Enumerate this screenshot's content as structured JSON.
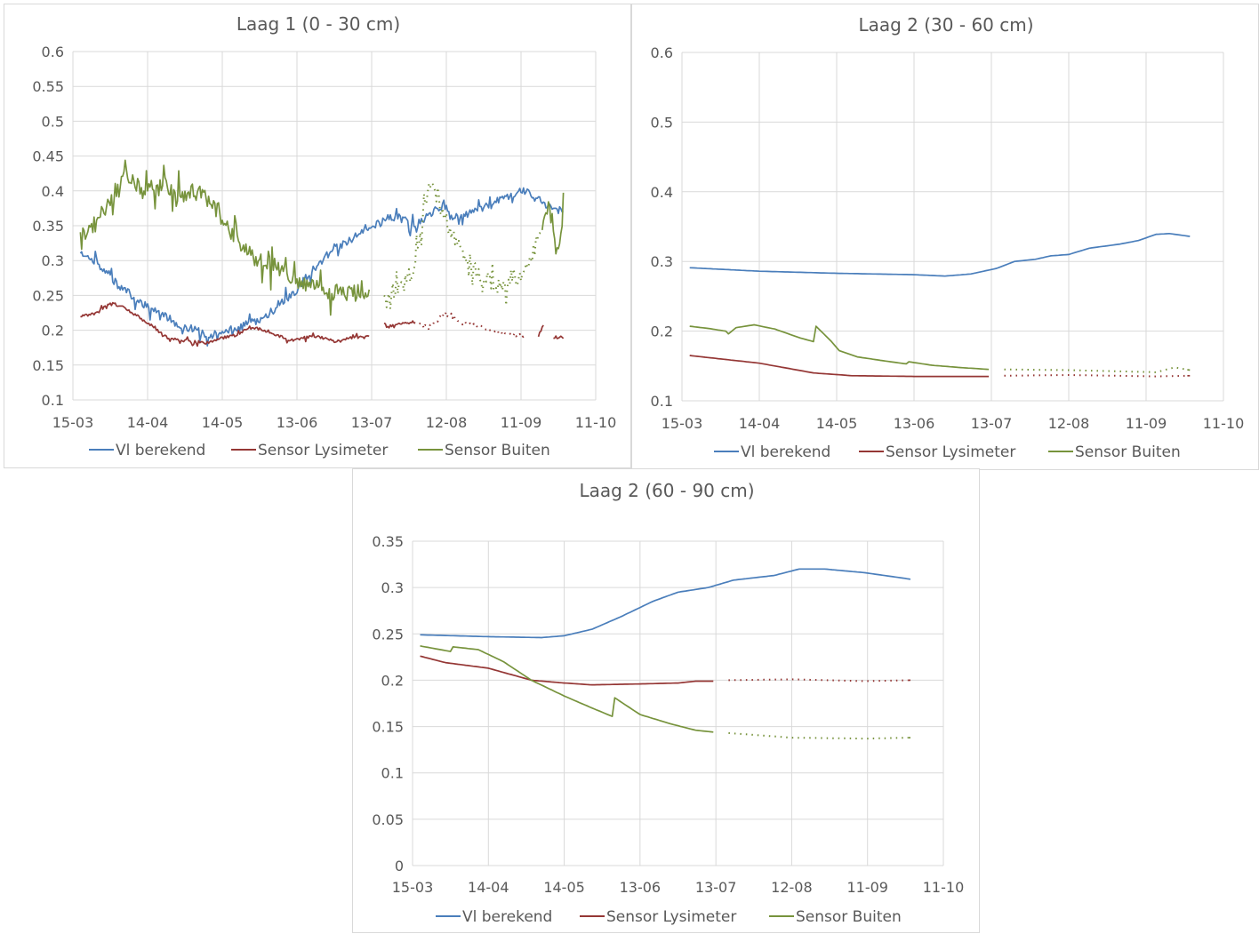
{
  "colors": {
    "vl": "#4a7ebb",
    "lysimeter": "#953735",
    "buiten": "#77933c"
  },
  "chart_data": [
    {
      "type": "line",
      "title": "Laag 1 (0 - 30 cm)",
      "x_tick_labels": [
        "15-03",
        "14-04",
        "14-05",
        "13-06",
        "13-07",
        "12-08",
        "11-09",
        "11-10"
      ],
      "y_tick_labels": [
        "0.1",
        "0.15",
        "0.2",
        "0.25",
        "0.3",
        "0.35",
        "0.4",
        "0.45",
        "0.5",
        "0.55",
        "0.6"
      ],
      "xlim": [
        "2015-03-15",
        "2015-10-11"
      ],
      "ylim": [
        0.1,
        0.6
      ],
      "grid": true,
      "legend": "bottom",
      "series": [
        {
          "name": "Vl berekend",
          "key": "vl",
          "style": "solid",
          "noise": 0.006,
          "points": [
            [
              "2015-03-18",
              0.31
            ],
            [
              "2015-03-25",
              0.297
            ],
            [
              "2015-04-01",
              0.268
            ],
            [
              "2015-04-10",
              0.243
            ],
            [
              "2015-04-20",
              0.222
            ],
            [
              "2015-04-28",
              0.206
            ],
            [
              "2015-05-05",
              0.198
            ],
            [
              "2015-05-10",
              0.193
            ],
            [
              "2015-05-20",
              0.203
            ],
            [
              "2015-05-28",
              0.213
            ],
            [
              "2015-06-05",
              0.232
            ],
            [
              "2015-06-12",
              0.255
            ],
            [
              "2015-06-20",
              0.29
            ],
            [
              "2015-06-28",
              0.318
            ],
            [
              "2015-07-05",
              0.33
            ],
            [
              "2015-07-12",
              0.345
            ],
            [
              "2015-07-22",
              0.365
            ],
            [
              "2015-07-30",
              0.35
            ],
            [
              "2015-08-05",
              0.365
            ],
            [
              "2015-08-10",
              0.378
            ],
            [
              "2015-08-15",
              0.362
            ],
            [
              "2015-08-25",
              0.372
            ],
            [
              "2015-09-05",
              0.39
            ],
            [
              "2015-09-12",
              0.4
            ],
            [
              "2015-09-20",
              0.382
            ],
            [
              "2015-09-28",
              0.37
            ]
          ]
        },
        {
          "name": "Sensor Lysimeter",
          "key": "lysimeter",
          "style": "mixed",
          "noise": 0.002,
          "points": [
            [
              "2015-03-18",
              0.221
            ],
            [
              "2015-03-25",
              0.225
            ],
            [
              "2015-03-30",
              0.24
            ],
            [
              "2015-04-05",
              0.232
            ],
            [
              "2015-04-15",
              0.208
            ],
            [
              "2015-04-22",
              0.189
            ],
            [
              "2015-05-01",
              0.184
            ],
            [
              "2015-05-08",
              0.182
            ],
            [
              "2015-05-15",
              0.19
            ],
            [
              "2015-05-20",
              0.193
            ],
            [
              "2015-05-25",
              0.205
            ],
            [
              "2015-06-02",
              0.198
            ],
            [
              "2015-06-10",
              0.185
            ],
            [
              "2015-06-20",
              0.192
            ],
            [
              "2015-06-28",
              0.184
            ],
            [
              "2015-07-06",
              0.19
            ],
            [
              "2015-07-12",
              0.19
            ],
            [
              "2015-07-18",
              0.205
            ],
            [
              "2015-07-30",
              0.212
            ],
            [
              "2015-08-05",
              0.205
            ],
            [
              "2015-08-12",
              0.222
            ],
            [
              "2015-08-20",
              0.21
            ],
            [
              "2015-09-05",
              0.195
            ],
            [
              "2015-09-12",
              0.19
            ],
            [
              "2015-09-18",
              0.192
            ],
            [
              "2015-09-20",
              0.208
            ],
            [
              "2015-09-24",
              0.19
            ],
            [
              "2015-09-28",
              0.19
            ]
          ],
          "gaps": [
            [
              "2015-07-12",
              "2015-07-18"
            ],
            [
              "2015-09-12",
              "2015-09-18"
            ],
            [
              "2015-09-20",
              "2015-09-24"
            ]
          ],
          "dotted": [
            [
              "2015-07-30",
              "2015-09-12"
            ]
          ]
        },
        {
          "name": "Sensor Buiten",
          "key": "buiten",
          "style": "mixed",
          "noise": 0.012,
          "points": [
            [
              "2015-03-18",
              0.335
            ],
            [
              "2015-03-25",
              0.355
            ],
            [
              "2015-03-30",
              0.39
            ],
            [
              "2015-04-05",
              0.42
            ],
            [
              "2015-04-12",
              0.4
            ],
            [
              "2015-04-20",
              0.41
            ],
            [
              "2015-04-28",
              0.39
            ],
            [
              "2015-05-05",
              0.4
            ],
            [
              "2015-05-12",
              0.37
            ],
            [
              "2015-05-20",
              0.33
            ],
            [
              "2015-05-28",
              0.3
            ],
            [
              "2015-06-05",
              0.29
            ],
            [
              "2015-06-12",
              0.27
            ],
            [
              "2015-06-20",
              0.26
            ],
            [
              "2015-06-28",
              0.255
            ],
            [
              "2015-07-06",
              0.253
            ],
            [
              "2015-07-12",
              0.256
            ],
            [
              "2015-07-18",
              0.255
            ],
            [
              "2015-07-25",
              0.26
            ],
            [
              "2015-07-30",
              0.29
            ],
            [
              "2015-08-05",
              0.41
            ],
            [
              "2015-08-10",
              0.37
            ],
            [
              "2015-08-20",
              0.3
            ],
            [
              "2015-08-28",
              0.27
            ],
            [
              "2015-09-05",
              0.262
            ],
            [
              "2015-09-10",
              0.27
            ],
            [
              "2015-09-15",
              0.3
            ],
            [
              "2015-09-20",
              0.36
            ],
            [
              "2015-09-23",
              0.39
            ],
            [
              "2015-09-25",
              0.3
            ],
            [
              "2015-09-28",
              0.37
            ]
          ],
          "gaps": [
            [
              "2015-07-12",
              "2015-07-18"
            ]
          ],
          "dotted": [
            [
              "2015-07-18",
              "2015-09-20"
            ]
          ]
        }
      ]
    },
    {
      "type": "line",
      "title": "Laag 2 (30 - 60 cm)",
      "x_tick_labels": [
        "15-03",
        "14-04",
        "14-05",
        "13-06",
        "13-07",
        "12-08",
        "11-09",
        "11-10"
      ],
      "y_tick_labels": [
        "0.1",
        "0.2",
        "0.3",
        "0.4",
        "0.5",
        "0.6"
      ],
      "xlim": [
        "2015-03-15",
        "2015-10-11"
      ],
      "ylim": [
        0.1,
        0.6
      ],
      "grid": true,
      "legend": "bottom",
      "series": [
        {
          "name": "Vl berekend",
          "key": "vl",
          "style": "solid",
          "noise": 0,
          "points": [
            [
              "2015-03-18",
              0.291
            ],
            [
              "2015-04-14",
              0.286
            ],
            [
              "2015-05-14",
              0.283
            ],
            [
              "2015-06-13",
              0.281
            ],
            [
              "2015-06-25",
              0.279
            ],
            [
              "2015-07-05",
              0.282
            ],
            [
              "2015-07-15",
              0.29
            ],
            [
              "2015-07-22",
              0.3
            ],
            [
              "2015-07-30",
              0.303
            ],
            [
              "2015-08-05",
              0.308
            ],
            [
              "2015-08-12",
              0.31
            ],
            [
              "2015-08-20",
              0.319
            ],
            [
              "2015-09-01",
              0.325
            ],
            [
              "2015-09-08",
              0.33
            ],
            [
              "2015-09-15",
              0.339
            ],
            [
              "2015-09-20",
              0.34
            ],
            [
              "2015-09-28",
              0.336
            ]
          ]
        },
        {
          "name": "Sensor Lysimeter",
          "key": "lysimeter",
          "style": "mixed",
          "noise": 0,
          "points": [
            [
              "2015-03-18",
              0.165
            ],
            [
              "2015-04-14",
              0.154
            ],
            [
              "2015-05-05",
              0.14
            ],
            [
              "2015-05-20",
              0.136
            ],
            [
              "2015-06-13",
              0.135
            ],
            [
              "2015-07-12",
              0.135
            ],
            [
              "2015-07-18",
              0.136
            ],
            [
              "2015-08-12",
              0.137
            ],
            [
              "2015-09-15",
              0.135
            ],
            [
              "2015-09-28",
              0.136
            ]
          ],
          "gaps": [
            [
              "2015-07-12",
              "2015-07-18"
            ]
          ],
          "dotted": [
            [
              "2015-07-18",
              "2015-09-28"
            ]
          ]
        },
        {
          "name": "Sensor Buiten",
          "key": "buiten",
          "style": "mixed",
          "noise": 0,
          "points": [
            [
              "2015-03-18",
              0.207
            ],
            [
              "2015-03-25",
              0.204
            ],
            [
              "2015-04-01",
              0.2
            ],
            [
              "2015-04-02",
              0.196
            ],
            [
              "2015-04-05",
              0.205
            ],
            [
              "2015-04-12",
              0.209
            ],
            [
              "2015-04-20",
              0.203
            ],
            [
              "2015-04-30",
              0.19
            ],
            [
              "2015-05-05",
              0.185
            ],
            [
              "2015-05-06",
              0.207
            ],
            [
              "2015-05-12",
              0.185
            ],
            [
              "2015-05-15",
              0.172
            ],
            [
              "2015-05-22",
              0.163
            ],
            [
              "2015-06-02",
              0.157
            ],
            [
              "2015-06-10",
              0.153
            ],
            [
              "2015-06-11",
              0.156
            ],
            [
              "2015-06-20",
              0.151
            ],
            [
              "2015-06-30",
              0.148
            ],
            [
              "2015-07-12",
              0.145
            ],
            [
              "2015-07-18",
              0.145
            ],
            [
              "2015-08-12",
              0.144
            ],
            [
              "2015-09-15",
              0.141
            ],
            [
              "2015-09-22",
              0.148
            ],
            [
              "2015-09-28",
              0.144
            ]
          ],
          "gaps": [
            [
              "2015-07-12",
              "2015-07-18"
            ]
          ],
          "dotted": [
            [
              "2015-07-18",
              "2015-09-28"
            ]
          ]
        }
      ]
    },
    {
      "type": "line",
      "title": "Laag 2 (60 - 90 cm)",
      "x_tick_labels": [
        "15-03",
        "14-04",
        "14-05",
        "13-06",
        "13-07",
        "12-08",
        "11-09",
        "11-10"
      ],
      "y_tick_labels": [
        "0",
        "0.05",
        "0.1",
        "0.15",
        "0.2",
        "0.25",
        "0.3",
        "0.35"
      ],
      "xlim": [
        "2015-03-15",
        "2015-10-11"
      ],
      "ylim": [
        0,
        0.35
      ],
      "grid": true,
      "legend": "bottom",
      "series": [
        {
          "name": "Vl berekend",
          "key": "vl",
          "style": "solid",
          "noise": 0,
          "points": [
            [
              "2015-03-18",
              0.249
            ],
            [
              "2015-04-14",
              0.247
            ],
            [
              "2015-05-05",
              0.246
            ],
            [
              "2015-05-14",
              0.248
            ],
            [
              "2015-05-25",
              0.255
            ],
            [
              "2015-06-05",
              0.268
            ],
            [
              "2015-06-18",
              0.285
            ],
            [
              "2015-06-28",
              0.295
            ],
            [
              "2015-07-10",
              0.3
            ],
            [
              "2015-07-20",
              0.308
            ],
            [
              "2015-08-05",
              0.313
            ],
            [
              "2015-08-15",
              0.32
            ],
            [
              "2015-08-25",
              0.32
            ],
            [
              "2015-09-10",
              0.316
            ],
            [
              "2015-09-28",
              0.309
            ]
          ]
        },
        {
          "name": "Sensor Lysimeter",
          "key": "lysimeter",
          "style": "mixed",
          "noise": 0,
          "points": [
            [
              "2015-03-18",
              0.226
            ],
            [
              "2015-03-28",
              0.219
            ],
            [
              "2015-04-14",
              0.213
            ],
            [
              "2015-05-01",
              0.2
            ],
            [
              "2015-05-14",
              0.197
            ],
            [
              "2015-05-25",
              0.195
            ],
            [
              "2015-06-13",
              0.196
            ],
            [
              "2015-06-28",
              0.197
            ],
            [
              "2015-07-05",
              0.199
            ],
            [
              "2015-07-12",
              0.199
            ],
            [
              "2015-07-18",
              0.2
            ],
            [
              "2015-08-12",
              0.201
            ],
            [
              "2015-09-10",
              0.199
            ],
            [
              "2015-09-28",
              0.2
            ]
          ],
          "gaps": [
            [
              "2015-07-12",
              "2015-07-18"
            ]
          ],
          "dotted": [
            [
              "2015-07-18",
              "2015-09-28"
            ]
          ]
        },
        {
          "name": "Sensor Buiten",
          "key": "buiten",
          "style": "mixed",
          "noise": 0,
          "points": [
            [
              "2015-03-18",
              0.237
            ],
            [
              "2015-03-30",
              0.231
            ],
            [
              "2015-03-31",
              0.236
            ],
            [
              "2015-04-10",
              0.233
            ],
            [
              "2015-04-20",
              0.22
            ],
            [
              "2015-05-01",
              0.2
            ],
            [
              "2015-05-14",
              0.183
            ],
            [
              "2015-05-25",
              0.17
            ],
            [
              "2015-06-02",
              0.161
            ],
            [
              "2015-06-03",
              0.181
            ],
            [
              "2015-06-13",
              0.163
            ],
            [
              "2015-06-25",
              0.153
            ],
            [
              "2015-07-05",
              0.146
            ],
            [
              "2015-07-12",
              0.144
            ],
            [
              "2015-07-18",
              0.143
            ],
            [
              "2015-08-12",
              0.138
            ],
            [
              "2015-09-10",
              0.137
            ],
            [
              "2015-09-28",
              0.138
            ]
          ],
          "gaps": [
            [
              "2015-07-12",
              "2015-07-18"
            ]
          ],
          "dotted": [
            [
              "2015-07-18",
              "2015-09-28"
            ]
          ]
        }
      ]
    }
  ]
}
